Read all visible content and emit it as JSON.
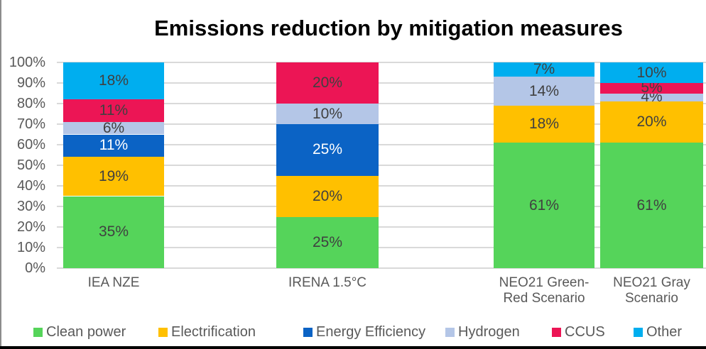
{
  "title": "Emissions reduction by mitigation measures",
  "chart_data": {
    "type": "bar",
    "stacked": true,
    "orientation": "vertical",
    "value_suffix": "%",
    "grid": true,
    "legend_position": "bottom",
    "categories": [
      {
        "label": "IEA NZE",
        "display_lines": [
          "IEA NZE"
        ]
      },
      {
        "label": "IRENA 1.5°C",
        "display_lines": [
          "IRENA 1.5°C"
        ]
      },
      {
        "label": "NEO21 Green-Red Scenario",
        "display_lines": [
          "NEO21 Green-",
          "Red Scenario"
        ]
      },
      {
        "label": "NEO21 Gray Scenario",
        "display_lines": [
          "NEO21 Gray",
          "Scenario"
        ]
      }
    ],
    "series": [
      {
        "name": "Clean power",
        "color": "#55D45A",
        "label_color": "#404040",
        "values": [
          35,
          25,
          61,
          61
        ]
      },
      {
        "name": "Electrification",
        "color": "#FFC000",
        "label_color": "#404040",
        "values": [
          19,
          20,
          18,
          20
        ]
      },
      {
        "name": "Energy Efficiency",
        "color": "#0B63C5",
        "label_color": "#FFFFFF",
        "values": [
          11,
          25,
          0,
          0
        ]
      },
      {
        "name": "Hydrogen",
        "color": "#B4C6E7",
        "label_color": "#404040",
        "values": [
          6,
          10,
          14,
          4
        ]
      },
      {
        "name": "CCUS",
        "color": "#EC1555",
        "label_color": "#404040",
        "values": [
          11,
          20,
          0,
          5
        ]
      },
      {
        "name": "Other",
        "color": "#00AEEF",
        "label_color": "#404040",
        "values": [
          18,
          0,
          7,
          10
        ]
      }
    ],
    "y_axis": {
      "min": 0,
      "max": 100,
      "step": 10,
      "tick_suffix": "%"
    }
  }
}
